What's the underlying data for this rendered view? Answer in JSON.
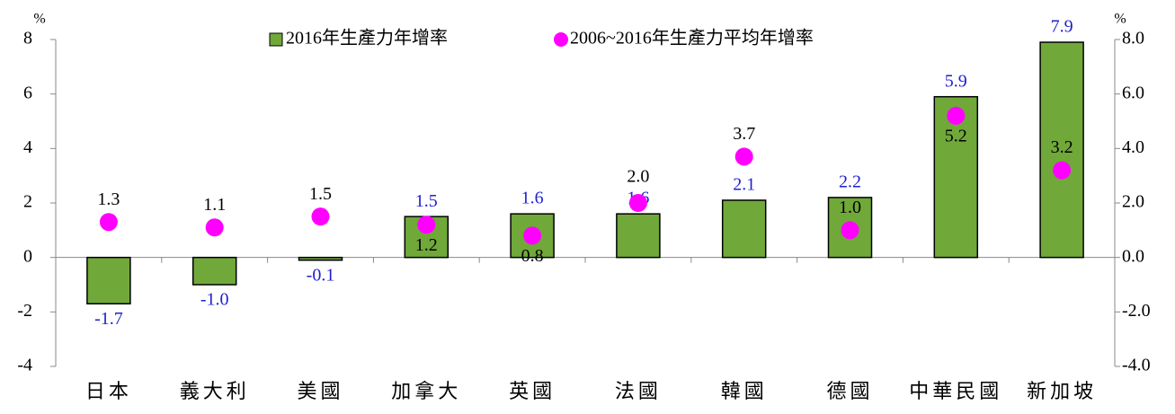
{
  "chart_data": {
    "type": "bar",
    "y_label": "%",
    "y2_label": "%",
    "categories": [
      "日本",
      "義大利",
      "美國",
      "加拿大",
      "英國",
      "法國",
      "韓國",
      "德國",
      "中華民國",
      "新加坡"
    ],
    "series": [
      {
        "name": "2016年生產力年增率",
        "type": "bar",
        "color": "#70a83a",
        "values": [
          -1.7,
          -1.0,
          -0.1,
          1.5,
          1.6,
          1.6,
          2.1,
          2.2,
          5.9,
          7.9
        ],
        "value_labels": [
          "-1.7",
          "-1.0",
          "-0.1",
          "1.5",
          "1.6",
          "1.6",
          "2.1",
          "2.2",
          "5.9",
          "7.9"
        ],
        "label_color": "#1f1fd0"
      },
      {
        "name": "2006~2016年生產力平均年增率",
        "type": "scatter",
        "color": "#ff00ff",
        "axis": "y2",
        "values": [
          1.3,
          1.1,
          1.5,
          1.2,
          0.8,
          2.0,
          3.7,
          1.0,
          5.2,
          3.2
        ],
        "value_labels": [
          "1.3",
          "1.1",
          "1.5",
          "1.2",
          "0.8",
          "2.0",
          "3.7",
          "1.0",
          "5.2",
          "3.2"
        ],
        "label_color": "#000000"
      }
    ],
    "ylim": [
      -4,
      8
    ],
    "yticks": [
      -4,
      -2,
      0,
      2,
      4,
      6,
      8
    ],
    "y2lim": [
      -4,
      8
    ],
    "y2ticks": [
      {
        "value": -4,
        "label": "-4.0"
      },
      {
        "value": -2,
        "label": "-2.0"
      },
      {
        "value": 0,
        "label": "0.0"
      },
      {
        "value": 2,
        "label": "2.0"
      },
      {
        "value": 4,
        "label": "4.0"
      },
      {
        "value": 6,
        "label": "6.0"
      },
      {
        "value": 8,
        "label": "8.0"
      }
    ],
    "grid": false,
    "legend": "top"
  }
}
